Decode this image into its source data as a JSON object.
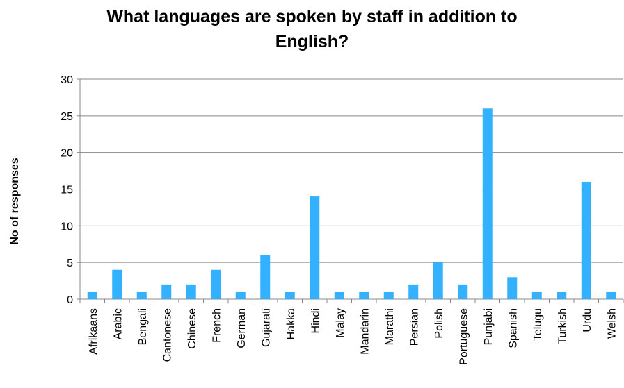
{
  "chart_data": {
    "type": "bar",
    "title_lines": [
      "What languages are spoken by staff in addition to",
      "English?"
    ],
    "xlabel": "",
    "ylabel": "No of responses",
    "ylim": [
      0,
      30
    ],
    "yticks": [
      0,
      5,
      10,
      15,
      20,
      25,
      30
    ],
    "grid": true,
    "legend": "none",
    "bar_color": "#33B1FF",
    "categories": [
      "Afrikaans",
      "Arabic",
      "Bengali",
      "Cantonese",
      "Chinese",
      "French",
      "German",
      "Gujarati",
      "Hakka",
      "Hindi",
      "Malay",
      "Mandarin",
      "Marathi",
      "Persian",
      "Polish",
      "Portuguese",
      "Punjabi",
      "Spanish",
      "Telugu",
      "Turkish",
      "Urdu",
      "Welsh"
    ],
    "values": [
      1,
      4,
      1,
      2,
      2,
      4,
      1,
      6,
      1,
      14,
      1,
      1,
      1,
      2,
      5,
      2,
      26,
      3,
      1,
      1,
      16,
      1
    ]
  }
}
